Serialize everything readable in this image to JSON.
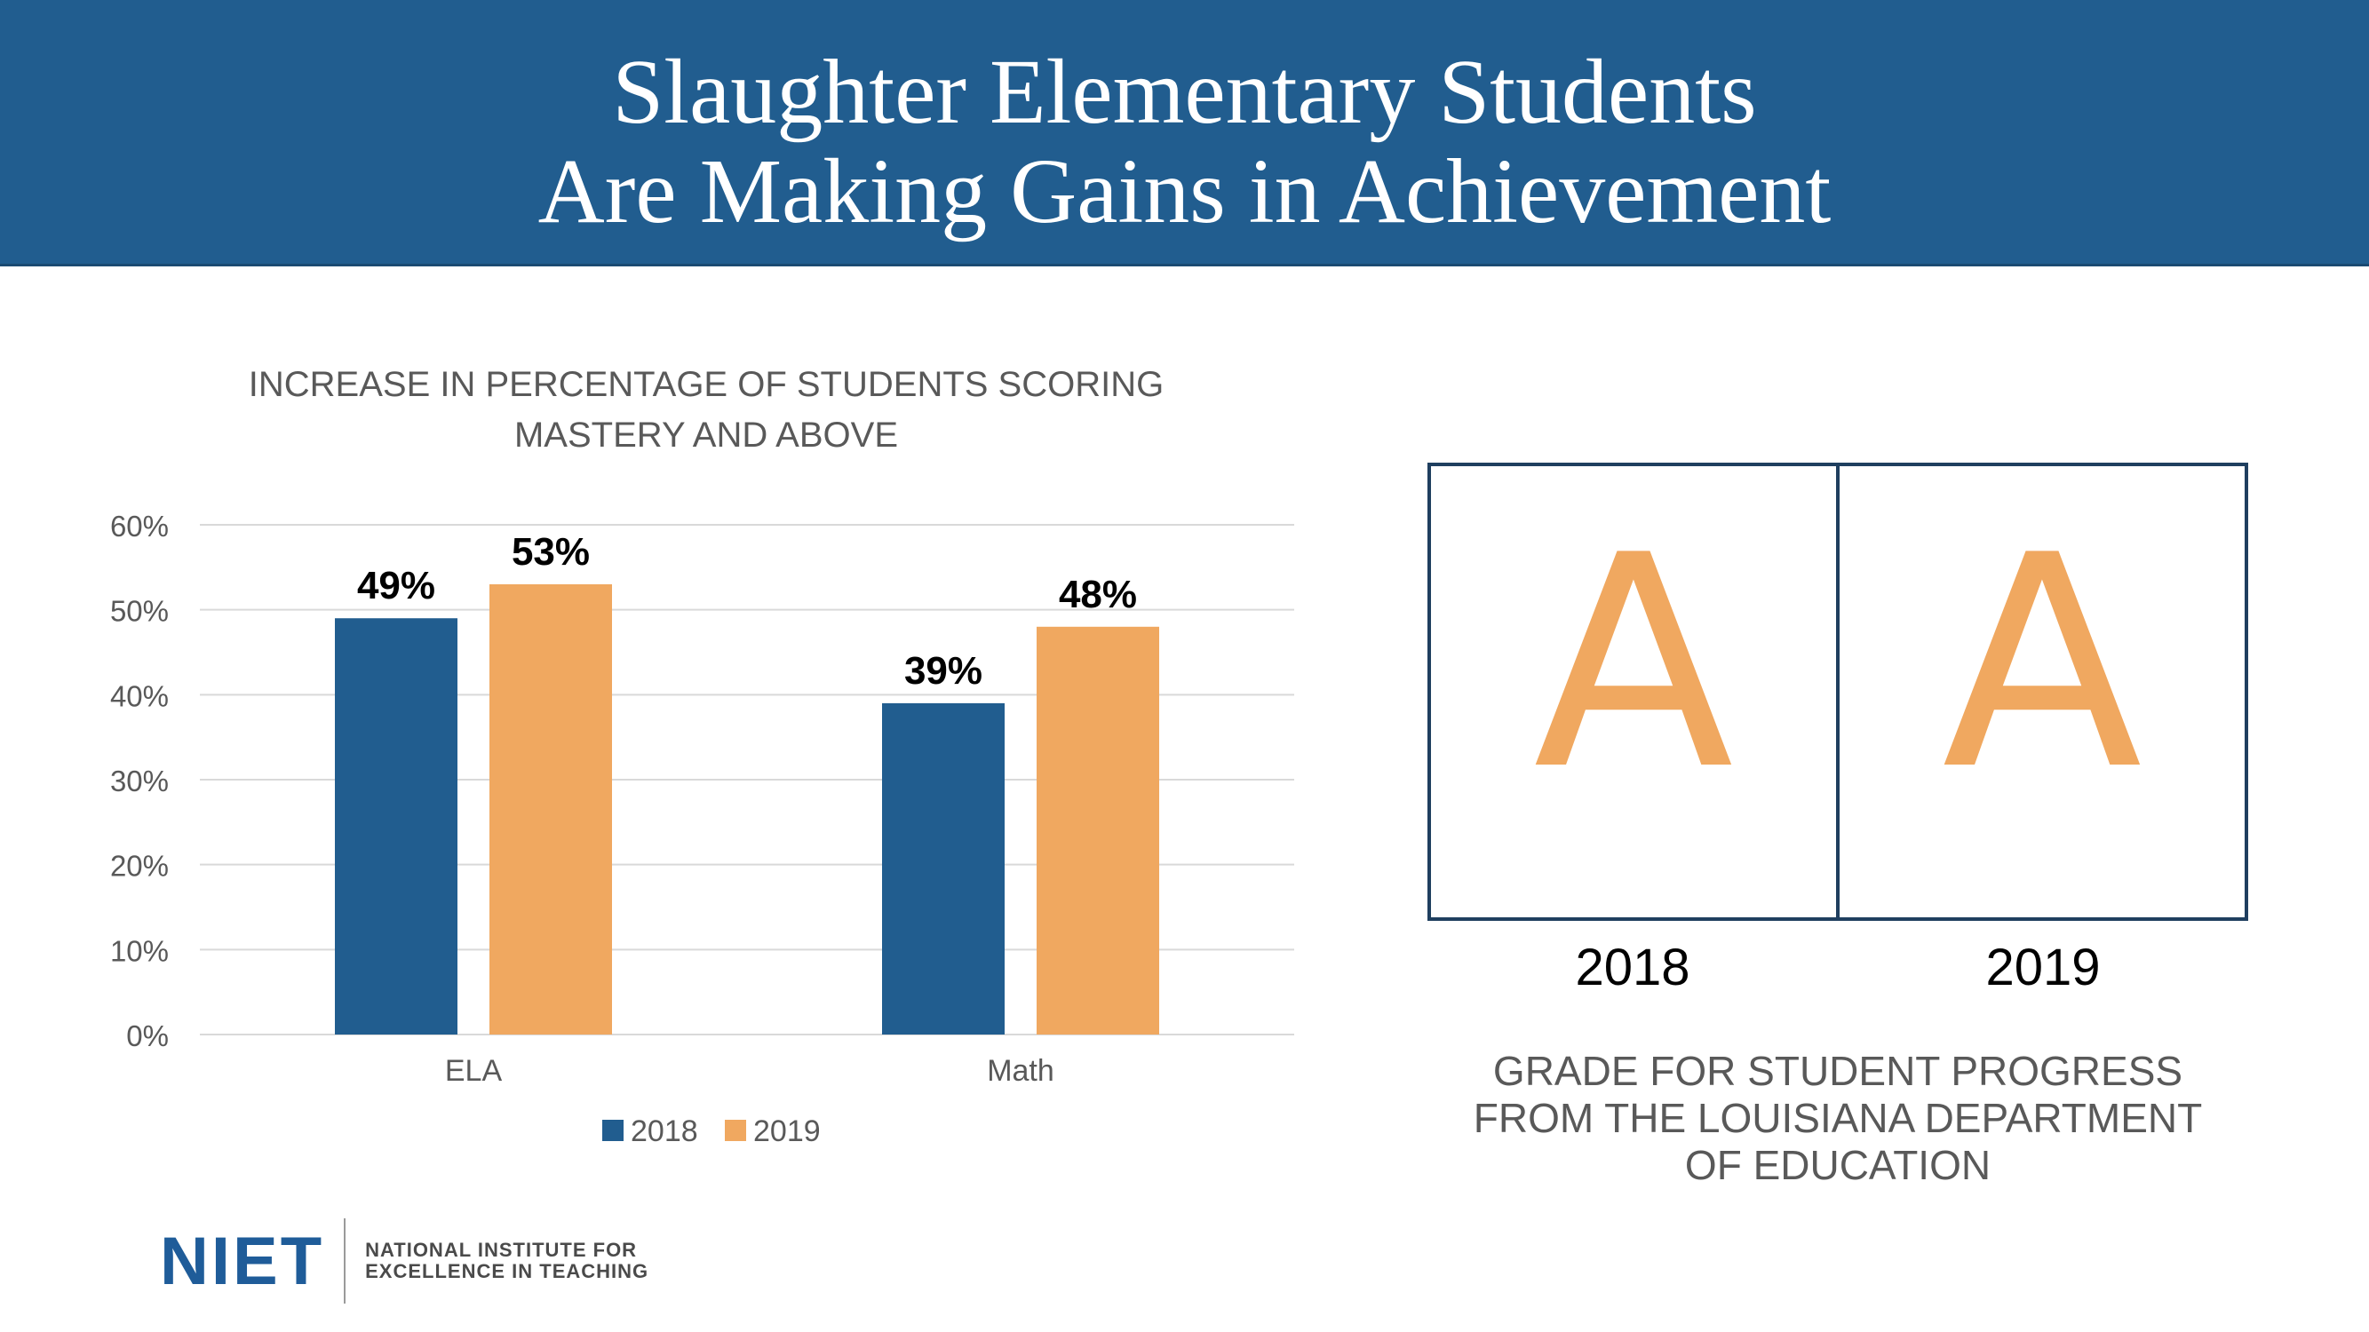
{
  "header": {
    "title_line1": "Slaughter Elementary Students",
    "title_line2": "Are Making Gains in Achievement"
  },
  "colors": {
    "header_bg": "#215d8f",
    "series_2018": "#215d8f",
    "series_2019": "#f0a860",
    "grade_letter": "#f0a860"
  },
  "chart_data": {
    "type": "bar",
    "title": "INCREASE IN PERCENTAGE OF STUDENTS SCORING MASTERY AND ABOVE",
    "title_line1": "INCREASE IN PERCENTAGE OF STUDENTS SCORING",
    "title_line2": "MASTERY AND ABOVE",
    "categories": [
      "ELA",
      "Math"
    ],
    "series": [
      {
        "name": "2018",
        "values": [
          49,
          39
        ],
        "labels": [
          "49%",
          "39%"
        ],
        "color": "#215d8f"
      },
      {
        "name": "2019",
        "values": [
          53,
          48
        ],
        "labels": [
          "53%",
          "48%"
        ],
        "color": "#f0a860"
      }
    ],
    "ylim": [
      0,
      60
    ],
    "yticks": [
      0,
      10,
      20,
      30,
      40,
      50,
      60
    ],
    "ytick_labels": [
      "0%",
      "10%",
      "20%",
      "30%",
      "40%",
      "50%",
      "60%"
    ],
    "grid": true,
    "legend": "bottom"
  },
  "grades": {
    "items": [
      {
        "year": "2018",
        "grade": "A"
      },
      {
        "year": "2019",
        "grade": "A"
      }
    ],
    "caption_line1": "GRADE FOR STUDENT PROGRESS",
    "caption_line2": "FROM THE LOUISIANA DEPARTMENT",
    "caption_line3": "OF EDUCATION"
  },
  "logo": {
    "mark": "NIET",
    "line1": "NATIONAL INSTITUTE FOR",
    "line2": "EXCELLENCE IN TEACHING"
  }
}
